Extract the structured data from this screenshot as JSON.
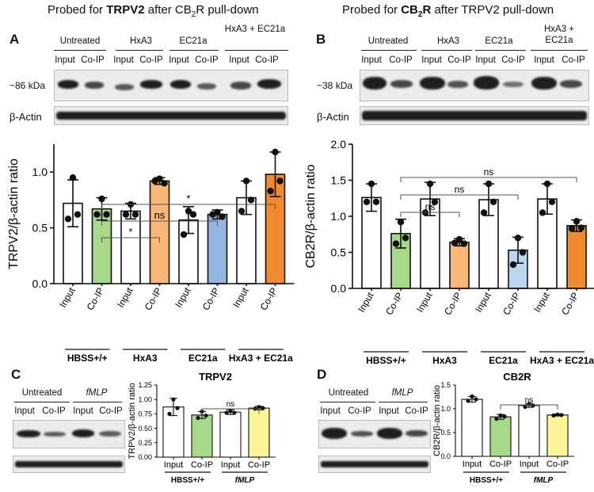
{
  "panels": {
    "A": {
      "letter": "A",
      "title_pre": "Probed for ",
      "title_bold": "TRPV2",
      "title_mid": " after CB",
      "title_sub": "2",
      "title_end": "R pull-down",
      "groups": [
        "Untreated",
        "HxA3",
        "EC21a",
        "HxA3 + EC21a"
      ],
      "lanes": [
        "Input",
        "Co-IP"
      ],
      "mw_label": "~86 kDa",
      "actin_label": "β-Actin"
    },
    "B": {
      "letter": "B",
      "title_pre": "Probed for ",
      "title_bold": "CB",
      "title_sub": "2",
      "title_bold2": "R",
      "title_end": " after TRPV2 pull-down",
      "groups": [
        "Untreated",
        "HxA3",
        "EC21a",
        "HxA3 + EC21a"
      ],
      "lanes": [
        "Input",
        "Co-IP"
      ],
      "mw_label": "~38 kDa",
      "actin_label": "β-Actin"
    },
    "C": {
      "letter": "C",
      "groups": [
        "Untreated",
        "fMLP"
      ],
      "lanes": [
        "Input",
        "Co-IP"
      ]
    },
    "D": {
      "letter": "D",
      "groups": [
        "Untreated",
        "fMLP"
      ],
      "lanes": [
        "Input",
        "Co-IP"
      ]
    }
  },
  "chart_data": [
    {
      "id": "A",
      "type": "bar",
      "ylabel": "TRPV2/β-actin ratio",
      "ylim": [
        0,
        1.25
      ],
      "yticks": [
        0.0,
        0.5,
        1.0
      ],
      "categories": [
        "Input",
        "Co-IP",
        "Input",
        "Co-IP",
        "Input",
        "Co-IP",
        "Input",
        "Co-IP"
      ],
      "groups": [
        "HBSS+/+",
        "HxA3",
        "EC21a",
        "HxA3 + EC21a"
      ],
      "values": [
        0.72,
        0.67,
        0.65,
        0.92,
        0.57,
        0.62,
        0.77,
        0.98
      ],
      "errors": [
        0.21,
        0.1,
        0.07,
        0.03,
        0.12,
        0.04,
        0.15,
        0.2
      ],
      "colors": [
        "#ffffff",
        "#a6d98a",
        "#ffffff",
        "#f9b87a",
        "#ffffff",
        "#93b7e0",
        "#ffffff",
        "#f08a30"
      ],
      "points": [
        [
          0.95,
          0.62,
          0.58
        ],
        [
          0.76,
          0.62,
          0.62
        ],
        [
          0.71,
          0.62,
          0.62
        ],
        [
          0.94,
          0.9,
          0.92
        ],
        [
          0.65,
          0.62,
          0.44
        ],
        [
          0.64,
          0.6,
          0.62
        ],
        [
          0.92,
          0.75,
          0.65
        ],
        [
          1.18,
          0.92,
          0.83
        ]
      ],
      "brackets": [
        {
          "from": 1,
          "to": 3,
          "label": "*"
        },
        {
          "from": 1,
          "to": 5,
          "label": "ns"
        },
        {
          "from": 1,
          "to": 7,
          "label": "*"
        }
      ]
    },
    {
      "id": "B",
      "type": "bar",
      "ylabel": "CB2R/β-actin ratio",
      "ylim": [
        0,
        2.0
      ],
      "yticks": [
        0.0,
        0.5,
        1.0,
        1.5,
        2.0
      ],
      "categories": [
        "Input",
        "Co-IP",
        "Input",
        "Co-IP",
        "Input",
        "Co-IP",
        "Input",
        "Co-IP"
      ],
      "groups": [
        "HBSS+/+",
        "HxA3",
        "EC21a",
        "HxA3 + EC21a"
      ],
      "values": [
        1.26,
        0.76,
        1.24,
        0.64,
        1.23,
        0.53,
        1.24,
        0.87
      ],
      "errors": [
        0.19,
        0.2,
        0.23,
        0.05,
        0.22,
        0.18,
        0.21,
        0.08
      ],
      "colors": [
        "#ffffff",
        "#a6d98a",
        "#ffffff",
        "#f9b87a",
        "#ffffff",
        "#bcd6ef",
        "#ffffff",
        "#f08a30"
      ],
      "points": [
        [
          1.45,
          1.2,
          1.2
        ],
        [
          0.92,
          0.7,
          0.62
        ],
        [
          1.45,
          1.2,
          1.05
        ],
        [
          0.68,
          0.62,
          0.63
        ],
        [
          1.45,
          1.2,
          1.05
        ],
        [
          0.7,
          0.5,
          0.33
        ],
        [
          1.45,
          1.2,
          1.05
        ],
        [
          0.93,
          0.84,
          0.83
        ]
      ],
      "brackets": [
        {
          "from": 1,
          "to": 3,
          "label": "ns"
        },
        {
          "from": 1,
          "to": 5,
          "label": "ns"
        },
        {
          "from": 1,
          "to": 7,
          "label": "ns"
        }
      ]
    },
    {
      "id": "C",
      "type": "bar",
      "title": "TRPV2",
      "ylabel": "TRPV2/β-actin ratio",
      "ylim": [
        0,
        1.25
      ],
      "yticks": [
        0.0,
        0.25,
        0.5,
        0.75,
        1.0,
        1.25
      ],
      "categories": [
        "Input",
        "Co-IP",
        "Input",
        "Co-IP"
      ],
      "groups": [
        "HBSS+/+",
        "fMLP"
      ],
      "values": [
        0.87,
        0.73,
        0.78,
        0.85
      ],
      "errors": [
        0.15,
        0.06,
        0.04,
        0.03
      ],
      "colors": [
        "#ffffff",
        "#a6d98a",
        "#ffffff",
        "#fdf59a"
      ],
      "points": [
        [
          1.0,
          0.85,
          0.75
        ],
        [
          0.79,
          0.72,
          0.68
        ],
        [
          0.8,
          0.77,
          0.77
        ],
        [
          0.87,
          0.85,
          0.84
        ]
      ],
      "brackets": [
        {
          "from": 1,
          "to": 3,
          "label": "ns"
        }
      ]
    },
    {
      "id": "D",
      "type": "bar",
      "title": "CB2R",
      "ylabel": "CB2R/β-actin ratio",
      "ylim": [
        0,
        1.5
      ],
      "yticks": [
        0.0,
        0.5,
        1.0,
        1.5
      ],
      "categories": [
        "Input",
        "Co-IP",
        "Input",
        "Co-IP"
      ],
      "groups": [
        "HBSS+/+",
        "fMLP"
      ],
      "values": [
        1.2,
        0.83,
        1.07,
        0.87
      ],
      "errors": [
        0.06,
        0.05,
        0.04,
        0.02
      ],
      "colors": [
        "#ffffff",
        "#a6d98a",
        "#ffffff",
        "#fdf59a"
      ],
      "points": [
        [
          1.26,
          1.2,
          1.17
        ],
        [
          0.86,
          0.84,
          0.79
        ],
        [
          1.1,
          1.07,
          1.04
        ],
        [
          0.88,
          0.87,
          0.86
        ]
      ],
      "brackets": [
        {
          "from": 1,
          "to": 3,
          "label": "ns"
        }
      ]
    }
  ]
}
